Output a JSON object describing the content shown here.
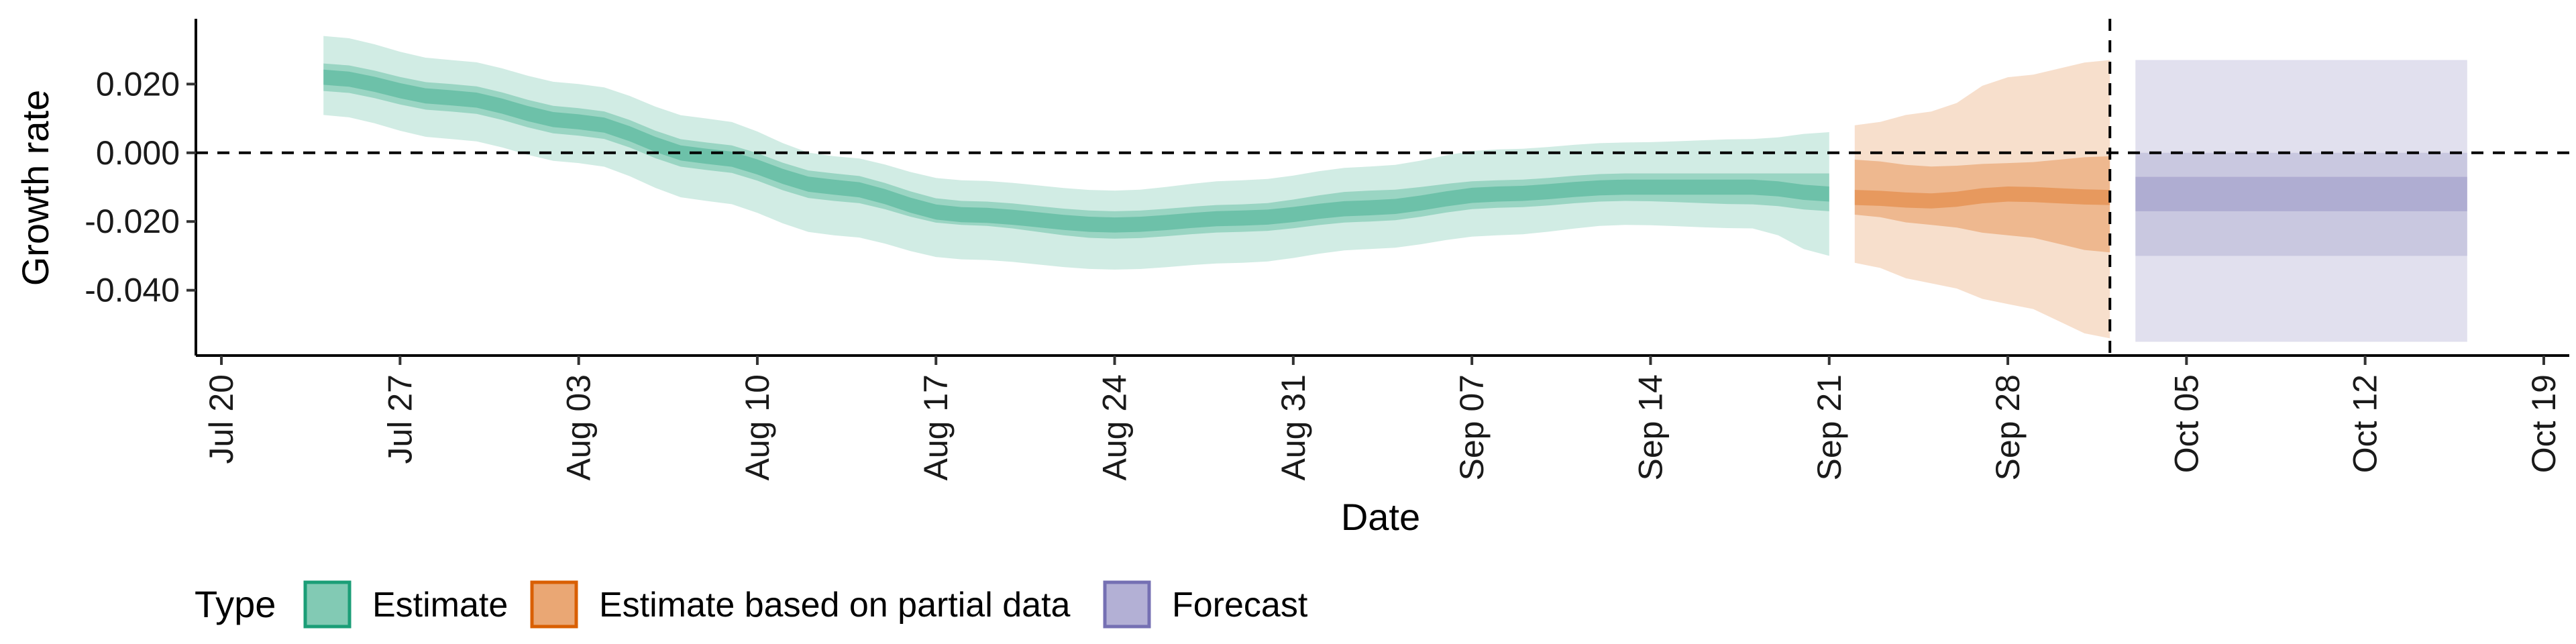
{
  "chart_data": {
    "type": "area",
    "xlabel": "Date",
    "ylabel": "Growth rate",
    "ylim": [
      -0.059,
      0.039
    ],
    "xlim": [
      "2020-07-19",
      "2020-10-20"
    ],
    "x_ticks": [
      "2020-07-20",
      "2020-07-27",
      "2020-08-03",
      "2020-08-10",
      "2020-08-17",
      "2020-08-24",
      "2020-08-31",
      "2020-09-07",
      "2020-09-14",
      "2020-09-21",
      "2020-09-28",
      "2020-10-05",
      "2020-10-12",
      "2020-10-19"
    ],
    "x_tick_labels": [
      "Jul 20",
      "Jul 27",
      "Aug 03",
      "Aug 10",
      "Aug 17",
      "Aug 24",
      "Aug 31",
      "Sep 07",
      "Sep 14",
      "Sep 21",
      "Sep 28",
      "Oct 05",
      "Oct 12",
      "Oct 19"
    ],
    "y_ticks": [
      0.02,
      0.0,
      -0.02,
      -0.04
    ],
    "y_tick_labels": [
      "0.020",
      "0.000",
      "-0.020",
      "-0.040"
    ],
    "reference_lines": {
      "hline_y": 0.0,
      "vline_x": "2020-10-02"
    },
    "grid": false,
    "legend": {
      "title": "Type",
      "position": "bottom-left",
      "entries": [
        "Estimate",
        "Estimate based on partial data",
        "Forecast"
      ]
    },
    "series": [
      {
        "name": "Estimate",
        "color": "#1b9e77",
        "x": [
          "2020-07-24",
          "2020-07-29",
          "2020-08-03",
          "2020-08-08",
          "2020-08-13",
          "2020-08-18",
          "2020-08-24",
          "2020-08-29",
          "2020-09-03",
          "2020-09-08",
          "2020-09-13",
          "2020-09-18",
          "2020-09-21"
        ],
        "median": [
          0.022,
          0.016,
          0.009,
          -0.001,
          -0.01,
          -0.018,
          -0.021,
          -0.019,
          -0.016,
          -0.012,
          -0.01,
          -0.01,
          -0.012
        ],
        "lower_90": [
          0.011,
          0.004,
          -0.003,
          -0.014,
          -0.024,
          -0.031,
          -0.034,
          -0.032,
          -0.028,
          -0.024,
          -0.021,
          -0.022,
          -0.03
        ],
        "upper_90": [
          0.034,
          0.027,
          0.02,
          0.01,
          -0.001,
          -0.008,
          -0.011,
          -0.008,
          -0.004,
          0.001,
          0.003,
          0.004,
          0.006
        ],
        "lower_50": [
          0.018,
          0.012,
          0.005,
          -0.005,
          -0.014,
          -0.021,
          -0.025,
          -0.023,
          -0.02,
          -0.016,
          -0.014,
          -0.015,
          -0.017
        ],
        "upper_50": [
          0.026,
          0.02,
          0.013,
          0.003,
          -0.006,
          -0.014,
          -0.017,
          -0.015,
          -0.011,
          -0.008,
          -0.006,
          -0.006,
          -0.006
        ]
      },
      {
        "name": "Estimate based on partial data",
        "color": "#d95f02",
        "x": [
          "2020-09-22",
          "2020-09-25",
          "2020-09-28",
          "2020-10-02"
        ],
        "median": [
          -0.013,
          -0.014,
          -0.012,
          -0.013
        ],
        "lower_90": [
          -0.032,
          -0.038,
          -0.044,
          -0.054
        ],
        "upper_90": [
          0.008,
          0.012,
          0.022,
          0.027
        ],
        "lower_50": [
          -0.018,
          -0.021,
          -0.024,
          -0.029
        ],
        "upper_50": [
          -0.002,
          -0.004,
          -0.003,
          -0.001
        ]
      },
      {
        "name": "Forecast",
        "color": "#7570b3",
        "x": [
          "2020-10-03",
          "2020-10-16"
        ],
        "median": [
          -0.012,
          -0.012
        ],
        "lower_90": [
          -0.055,
          -0.055
        ],
        "upper_90": [
          0.027,
          0.027
        ],
        "lower_50": [
          -0.03,
          -0.03
        ],
        "upper_50": [
          0.0,
          0.0
        ],
        "lower_20": [
          -0.017,
          -0.017
        ],
        "upper_20": [
          -0.007,
          -0.007
        ]
      }
    ]
  }
}
